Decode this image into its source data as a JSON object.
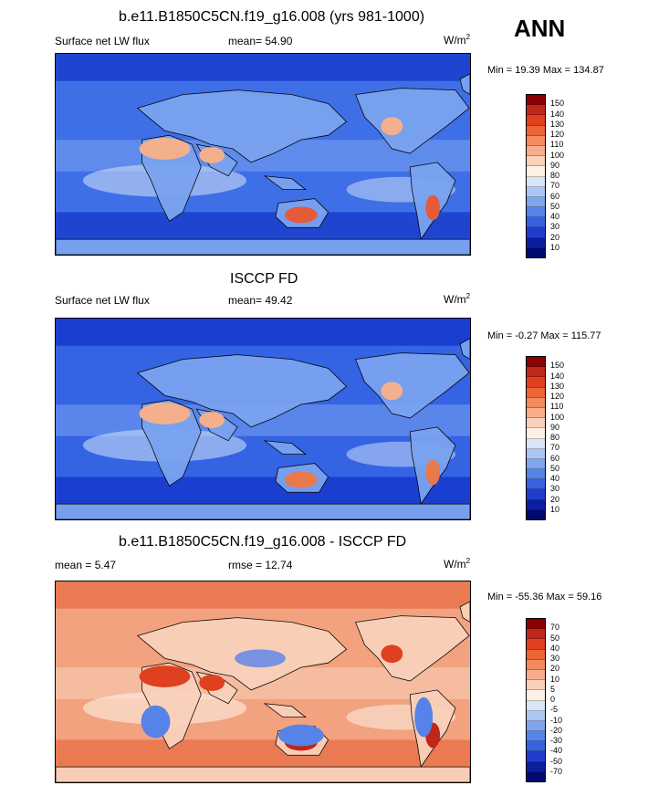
{
  "season": "ANN",
  "panels": [
    {
      "title": "b.e11.B1850C5CN.f19_g16.008 (yrs 981-1000)",
      "left_label": "Surface net LW flux",
      "center_label": "mean=  54.90",
      "units_base": "W/m",
      "units_exp": "2",
      "minmax": "Min =  19.39 Max = 134.87",
      "colors": {
        "ocean": "#3f6fe6",
        "ocean_dark": "#1e44d0",
        "mid": "#7aa3f0",
        "light": "#c9dcf7",
        "warm": "#f4b08c",
        "hot": "#e65a3a"
      },
      "colorbar_labels": [
        "150",
        "140",
        "130",
        "120",
        "110",
        "100",
        "90",
        "80",
        "70",
        "60",
        "50",
        "40",
        "30",
        "20",
        "10"
      ],
      "colorbar_colors": [
        "#8b0000",
        "#c0261a",
        "#e0401f",
        "#ee6535",
        "#f38b5e",
        "#f7ad8a",
        "#fad1bb",
        "#fdf0e5",
        "#d8e6f8",
        "#aac6f3",
        "#7ea5ee",
        "#5683e8",
        "#3a62de",
        "#1f3ecc",
        "#0c1e9e",
        "#000a6e"
      ]
    },
    {
      "title": "ISCCP FD",
      "left_label": "Surface net LW flux",
      "center_label": "mean=  49.42",
      "units_base": "W/m",
      "units_exp": "2",
      "minmax": "Min =  -0.27 Max = 115.77",
      "colors": {
        "ocean": "#3463e3",
        "ocean_dark": "#1a3fd0",
        "mid": "#7aa3f0",
        "light": "#c9dcf7",
        "warm": "#f4b08c",
        "hot": "#e8794d"
      },
      "colorbar_labels": [
        "150",
        "140",
        "130",
        "120",
        "110",
        "100",
        "90",
        "80",
        "70",
        "60",
        "50",
        "40",
        "30",
        "20",
        "10"
      ],
      "colorbar_colors": [
        "#8b0000",
        "#c0261a",
        "#e0401f",
        "#ee6535",
        "#f38b5e",
        "#f7ad8a",
        "#fad1bb",
        "#fdf0e5",
        "#d8e6f8",
        "#aac6f3",
        "#7ea5ee",
        "#5683e8",
        "#3a62de",
        "#1f3ecc",
        "#0c1e9e",
        "#000a6e"
      ]
    },
    {
      "title": "b.e11.B1850C5CN.f19_g16.008 - ISCCP FD",
      "left_label": "mean =  5.47",
      "center_label": "rmse =  12.74",
      "units_base": "W/m",
      "units_exp": "2",
      "minmax": "Min = -55.36 Max =  59.16",
      "colors": {
        "ocean": "#f2a27e",
        "ocean_dark": "#ea7a52",
        "mid": "#fad1bb",
        "light": "#fdf0e5",
        "warm": "#e0401f",
        "hot": "#c0261a",
        "cold": "#5683e8"
      },
      "colorbar_labels": [
        "70",
        "50",
        "40",
        "30",
        "20",
        "10",
        "5",
        "0",
        "-5",
        "-10",
        "-20",
        "-30",
        "-40",
        "-50",
        "-70"
      ],
      "colorbar_colors": [
        "#8b0000",
        "#c0261a",
        "#e0401f",
        "#ee6535",
        "#f38b5e",
        "#f7ad8a",
        "#fad1bb",
        "#fdf0e5",
        "#d8e6f8",
        "#aac6f3",
        "#7ea5ee",
        "#5683e8",
        "#3a62de",
        "#1f3ecc",
        "#0c1e9e",
        "#000a6e"
      ]
    }
  ]
}
